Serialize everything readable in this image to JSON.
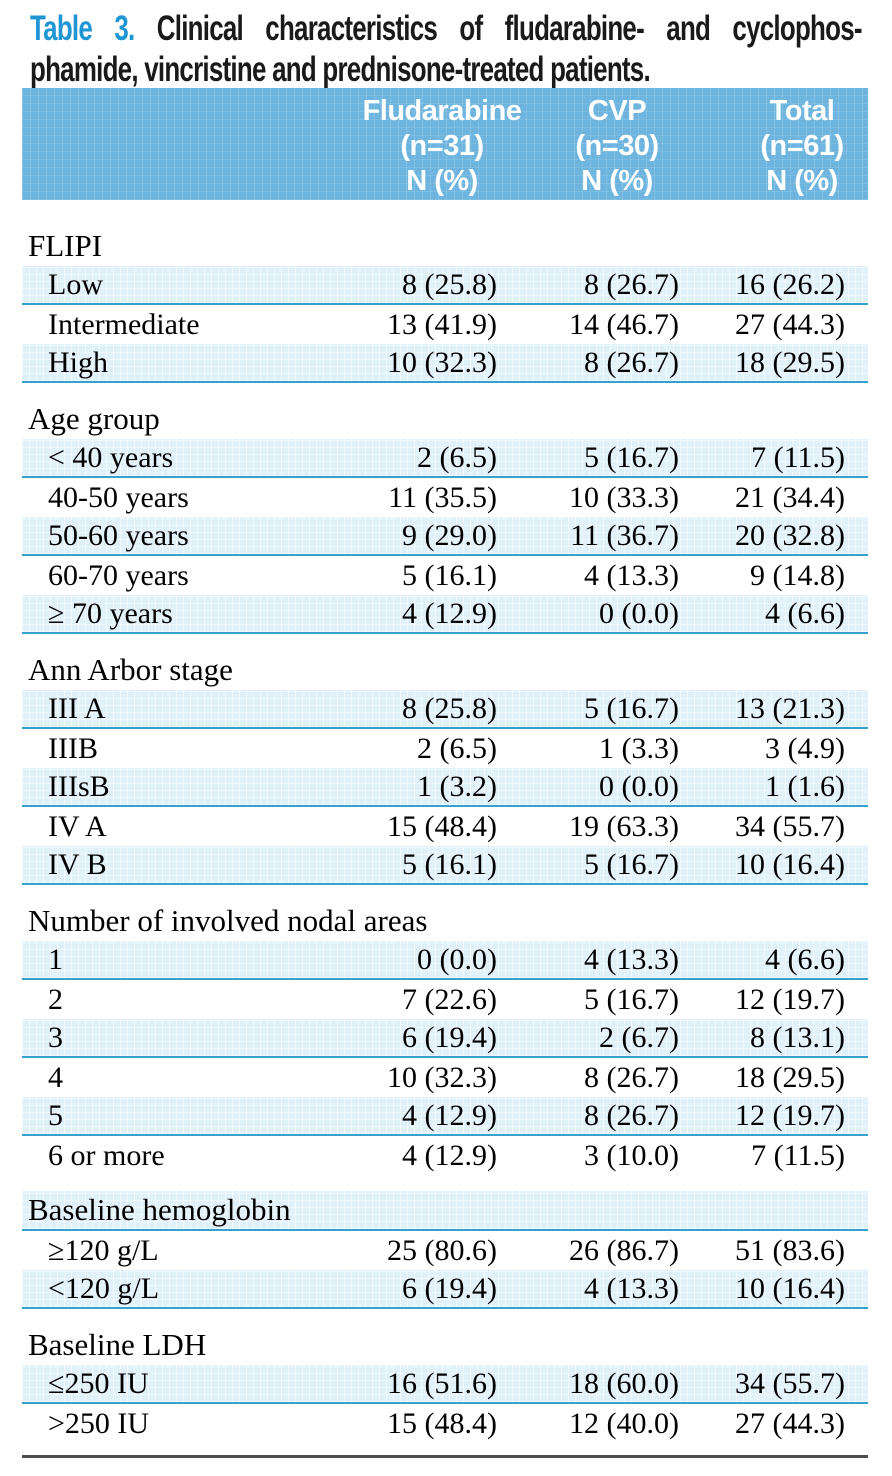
{
  "title": {
    "label": "Table 3.",
    "line1_rest": "Clinical characteristics of fludarabine- and cyclophos-",
    "line2": "phamide, vincristine and prednisone-treated patients."
  },
  "table": {
    "columns": [
      {
        "name": "Fludarabine",
        "n": "(n=31)",
        "unit": "N (%)"
      },
      {
        "name": "CVP",
        "n": "(n=30)",
        "unit": "N (%)"
      },
      {
        "name": "Total",
        "n": "(n=61)",
        "unit": "N (%)"
      }
    ],
    "sections": [
      {
        "title": "FLIPI",
        "rows": [
          [
            "Low",
            "8 (25.8)",
            "8 (26.7)",
            "16 (26.2)"
          ],
          [
            "Intermediate",
            "13 (41.9)",
            "14 (46.7)",
            "27 (44.3)"
          ],
          [
            "High",
            "10 (32.3)",
            "8 (26.7)",
            "18 (29.5)"
          ]
        ]
      },
      {
        "title": "Age group",
        "rows": [
          [
            "< 40 years",
            "2 (6.5)",
            "5 (16.7)",
            "7 (11.5)"
          ],
          [
            "40-50 years",
            "11 (35.5)",
            "10 (33.3)",
            "21 (34.4)"
          ],
          [
            "50-60 years",
            "9 (29.0)",
            "11 (36.7)",
            "20 (32.8)"
          ],
          [
            "60-70 years",
            "5 (16.1)",
            "4 (13.3)",
            "9 (14.8)"
          ],
          [
            "≥ 70 years",
            "4 (12.9)",
            "0 (0.0)",
            "4 (6.6)"
          ]
        ]
      },
      {
        "title": "Ann Arbor stage",
        "rows": [
          [
            "III A",
            "8 (25.8)",
            "5 (16.7)",
            "13 (21.3)"
          ],
          [
            "IIIB",
            "2 (6.5)",
            "1 (3.3)",
            "3 (4.9)"
          ],
          [
            "IIIsB",
            "1 (3.2)",
            "0 (0.0)",
            "1 (1.6)"
          ],
          [
            "IV A",
            "15 (48.4)",
            "19 (63.3)",
            "34 (55.7)"
          ],
          [
            "IV B",
            "5 (16.1)",
            "5 (16.7)",
            "10 (16.4)"
          ]
        ]
      },
      {
        "title": "Number of involved nodal areas",
        "rows": [
          [
            "1",
            "0 (0.0)",
            "4 (13.3)",
            "4 (6.6)"
          ],
          [
            "2",
            "7 (22.6)",
            "5 (16.7)",
            "12 (19.7)"
          ],
          [
            "3",
            "6 (19.4)",
            "2 (6.7)",
            "8 (13.1)"
          ],
          [
            "4",
            "10 (32.3)",
            "8 (26.7)",
            "18 (29.5)"
          ],
          [
            "5",
            "4 (12.9)",
            "8 (26.7)",
            "12 (19.7)"
          ],
          [
            "6 or more",
            "4 (12.9)",
            "3 (10.0)",
            "7 (11.5)"
          ]
        ]
      },
      {
        "title": "Baseline hemoglobin",
        "rows": [
          [
            "≥120 g/L",
            "25 (80.6)",
            "26 (86.7)",
            "51 (83.6)"
          ],
          [
            "<120 g/L",
            "6 (19.4)",
            "4 (13.3)",
            "10 (16.4)"
          ]
        ]
      },
      {
        "title": "Baseline LDH",
        "rows": [
          [
            "≤250 IU",
            "16 (51.6)",
            "18 (60.0)",
            "34 (55.7)"
          ],
          [
            ">250 IU",
            "15 (48.4)",
            "12 (40.0)",
            "27 (44.3)"
          ]
        ]
      }
    ]
  },
  "colors": {
    "title_accent": "#1e96d3",
    "header_band": "#6db5de",
    "shaded_row": "#e1f1fa",
    "row_separator": "#35a1cd",
    "bottom_rule": "#4c4c4c"
  }
}
